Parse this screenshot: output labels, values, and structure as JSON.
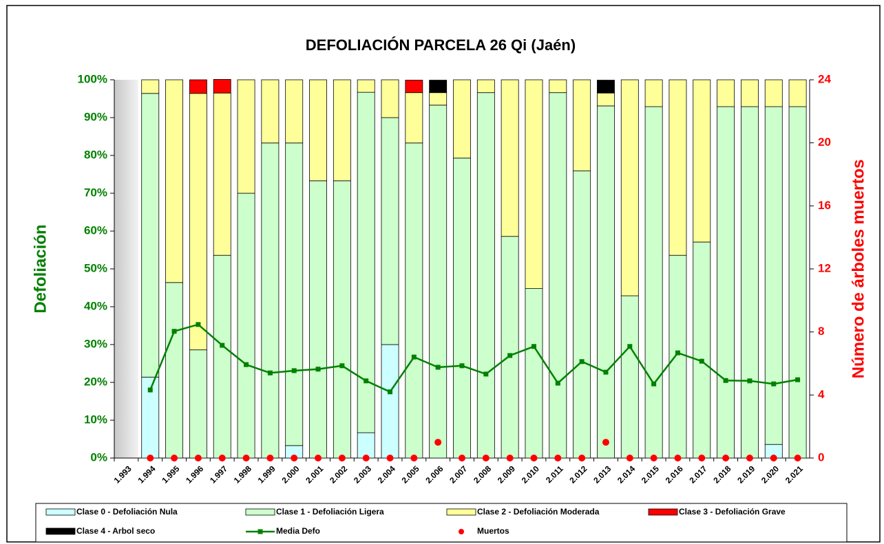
{
  "chart_data": {
    "type": "bar",
    "stacked": true,
    "title": "DEFOLIACIÓN PARCELA 26 Qi (Jaén)",
    "y_label": "Defoliación",
    "y2_label": "Número de árboles muertos",
    "categories": [
      "1.993",
      "1.994",
      "1.995",
      "1.996",
      "1.997",
      "1.998",
      "1.999",
      "2.000",
      "2.001",
      "2.002",
      "2.003",
      "2.004",
      "2.005",
      "2.006",
      "2.007",
      "2.008",
      "2.009",
      "2.010",
      "2.011",
      "2.012",
      "2.013",
      "2.014",
      "2.015",
      "2.016",
      "2.017",
      "2.018",
      "2.019",
      "2.020",
      "2.021"
    ],
    "series": [
      {
        "name": "Clase 0 - Defoliación Nula",
        "type": "bar",
        "color": "#ccffff",
        "values": [
          null,
          21.4,
          0,
          0,
          0,
          0,
          0,
          3.3,
          0,
          0,
          6.7,
          30,
          0,
          0,
          0,
          0,
          0,
          0,
          0,
          0,
          0,
          0,
          0,
          0,
          0,
          0,
          0,
          3.6,
          0
        ]
      },
      {
        "name": "Clase 1 - Defoliación Ligera",
        "type": "bar",
        "color": "#ccffcc",
        "values": [
          null,
          75,
          46.4,
          28.6,
          53.6,
          70,
          83.3,
          80,
          73.3,
          73.3,
          90,
          60,
          83.3,
          93.3,
          79.3,
          96.6,
          58.6,
          44.8,
          96.6,
          75.9,
          93.1,
          42.9,
          92.9,
          53.6,
          57.1,
          92.9,
          92.9,
          89.3,
          92.9
        ]
      },
      {
        "name": "Clase 2 - Defoliación Moderada",
        "type": "bar",
        "color": "#ffff99",
        "values": [
          null,
          3.6,
          53.6,
          67.8,
          42.9,
          30,
          16.7,
          16.7,
          26.7,
          26.7,
          3.3,
          10,
          13.3,
          3.3,
          20.7,
          3.4,
          41.4,
          55.2,
          3.4,
          24.1,
          3.4,
          57.1,
          7.1,
          46.4,
          42.9,
          7.1,
          7.1,
          7.1,
          7.1
        ]
      },
      {
        "name": "Clase 3 - Defoliación Grave",
        "type": "bar",
        "color": "#ff0000",
        "values": [
          null,
          0,
          0,
          3.6,
          3.6,
          0,
          0,
          0,
          0,
          0,
          0,
          0,
          3.3,
          0,
          0,
          0,
          0,
          0,
          0,
          0,
          0,
          0,
          0,
          0,
          0,
          0,
          0,
          0,
          0
        ]
      },
      {
        "name": "Clase 4 - Arbol seco",
        "type": "bar",
        "color": "#000000",
        "values": [
          null,
          0,
          0,
          0,
          0,
          0,
          0,
          0,
          0,
          0,
          0,
          0,
          0,
          3.3,
          0,
          0,
          0,
          0,
          0,
          0,
          3.4,
          0,
          0,
          0,
          0,
          0,
          0,
          0,
          0
        ]
      },
      {
        "name": "Media Defo",
        "type": "line",
        "color": "#008000",
        "values": [
          null,
          18,
          33.5,
          35.3,
          29.8,
          24.7,
          22.5,
          23.1,
          23.5,
          24.4,
          20.4,
          17.5,
          26.7,
          24,
          24.4,
          22.2,
          27.1,
          29.5,
          19.8,
          25.5,
          22.7,
          29.5,
          19.6,
          27.8,
          25.6,
          20.5,
          20.4,
          19.6,
          20.7
        ]
      },
      {
        "name": "Muertos",
        "type": "scatter",
        "axis": "y2",
        "color": "#ff0000",
        "values": [
          null,
          0,
          0,
          0,
          0,
          0,
          0,
          0,
          0,
          0,
          0,
          0,
          0,
          1,
          0,
          0,
          0,
          0,
          0,
          0,
          1,
          0,
          0,
          0,
          0,
          0,
          0,
          0,
          0
        ]
      }
    ],
    "ylim": [
      0,
      100
    ],
    "yticks": [
      {
        "value": 0,
        "label": "0%"
      },
      {
        "value": 10,
        "label": "10%"
      },
      {
        "value": 20,
        "label": "20%"
      },
      {
        "value": 30,
        "label": "30%"
      },
      {
        "value": 40,
        "label": "40%"
      },
      {
        "value": 50,
        "label": "50%"
      },
      {
        "value": 60,
        "label": "60%"
      },
      {
        "value": 70,
        "label": "70%"
      },
      {
        "value": 80,
        "label": "80%"
      },
      {
        "value": 90,
        "label": "90%"
      },
      {
        "value": 100,
        "label": "100%"
      }
    ],
    "y2lim": [
      0,
      24
    ],
    "y2ticks": [
      0,
      4,
      8,
      12,
      16,
      20,
      24
    ],
    "legend": "bottom"
  }
}
